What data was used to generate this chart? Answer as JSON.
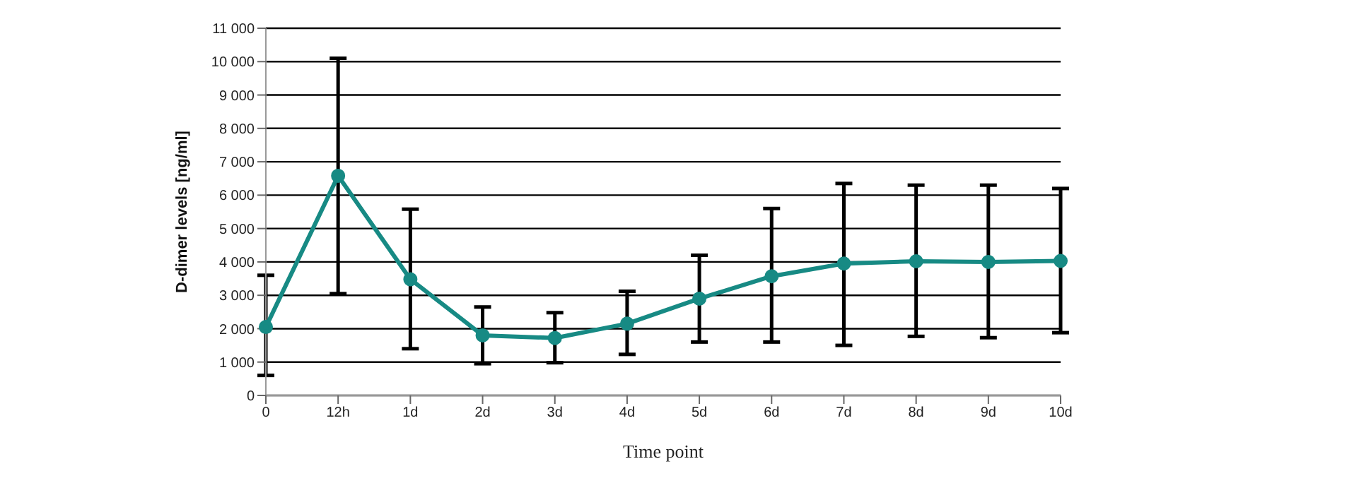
{
  "chart_data": {
    "type": "line",
    "xlabel": "Time point",
    "ylabel": "D-dimer levels [ng/ml]",
    "categories": [
      "0",
      "12h",
      "1d",
      "2d",
      "3d",
      "4d",
      "5d",
      "6d",
      "7d",
      "8d",
      "9d",
      "10d"
    ],
    "series": [
      {
        "color": "#178a84",
        "values": [
          2050,
          6580,
          3480,
          1800,
          1720,
          2150,
          2900,
          3570,
          3950,
          4020,
          4000,
          4030
        ],
        "errors": [
          [
            600,
            3600
          ],
          [
            3050,
            10100
          ],
          [
            1400,
            5580
          ],
          [
            950,
            2650
          ],
          [
            980,
            2480
          ],
          [
            1230,
            3120
          ],
          [
            1600,
            4200
          ],
          [
            1600,
            5600
          ],
          [
            1500,
            6350
          ],
          [
            1770,
            6300
          ],
          [
            1730,
            6300
          ],
          [
            1880,
            6200
          ]
        ]
      }
    ],
    "ylim": [
      0,
      11000
    ],
    "yticks": [
      0,
      {
        "value": 1000,
        "label": "1 000"
      },
      {
        "value": 2000,
        "label": "2 000"
      },
      {
        "value": 3000,
        "label": "3 000"
      },
      {
        "value": 4000,
        "label": "4 000"
      },
      {
        "value": 5000,
        "label": "5 000"
      },
      {
        "value": 6000,
        "label": "6 000"
      },
      {
        "value": 7000,
        "label": "7 000"
      },
      {
        "value": 8000,
        "label": "8 000"
      },
      {
        "value": 9000,
        "label": "9 000"
      },
      {
        "value": 10000,
        "label": "10 000"
      },
      {
        "value": 11000,
        "label": "11 000"
      }
    ],
    "grid": "y",
    "marker": "circle",
    "line_style": "solid"
  }
}
